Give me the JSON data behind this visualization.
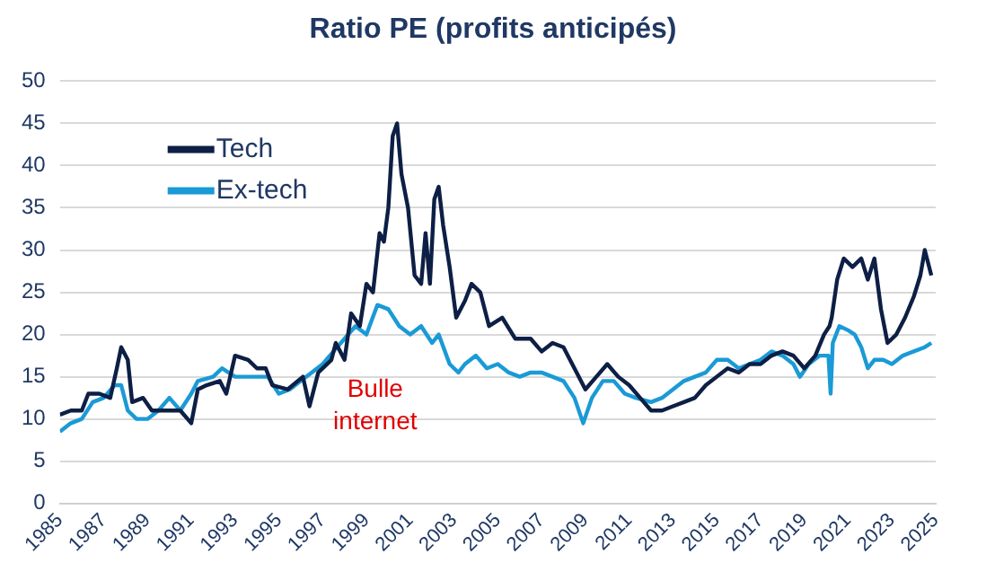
{
  "chart_data": {
    "type": "line",
    "title": "Ratio PE (profits anticipés)",
    "xlim": [
      1985,
      2025
    ],
    "xticks": [
      1985,
      1987,
      1989,
      1991,
      1993,
      1995,
      1997,
      1999,
      2001,
      2003,
      2005,
      2007,
      2009,
      2011,
      2013,
      2015,
      2017,
      2019,
      2021,
      2023,
      2025
    ],
    "ylim": [
      0,
      50
    ],
    "yticks": [
      0,
      5,
      10,
      15,
      20,
      25,
      30,
      35,
      40,
      45,
      50
    ],
    "grid": "y",
    "legend": "top left",
    "marker": "none",
    "line_style": "solid",
    "annotations": [
      "Bulle internet"
    ],
    "series": [
      {
        "name": "Tech",
        "color": "#0d1f45",
        "x": [
          1985,
          1985.5,
          1986,
          1986.3,
          1986.8,
          1987.3,
          1987.6,
          1987.8,
          1988.1,
          1988.3,
          1988.8,
          1989.2,
          1989.6,
          1990,
          1990.5,
          1991,
          1991.3,
          1991.7,
          1992.3,
          1992.6,
          1993,
          1993.6,
          1994,
          1994.4,
          1994.7,
          1995.4,
          1996.1,
          1996.4,
          1996.8,
          1997.4,
          1997.6,
          1998,
          1998.3,
          1998.7,
          1999,
          1999.3,
          1999.6,
          1999.8,
          2000,
          2000.2,
          2000.4,
          2000.6,
          2000.9,
          2001.2,
          2001.5,
          2001.7,
          2001.9,
          2002.1,
          2002.3,
          2002.5,
          2002.8,
          2003.1,
          2003.5,
          2003.8,
          2004.2,
          2004.6,
          2005.2,
          2005.8,
          2006.5,
          2007,
          2007.5,
          2008,
          2008.5,
          2009,
          2009.5,
          2010,
          2010.5,
          2011,
          2011.5,
          2012,
          2012.5,
          2013,
          2013.5,
          2014,
          2014.5,
          2015,
          2015.5,
          2016,
          2016.5,
          2017,
          2017.5,
          2018,
          2018.5,
          2019,
          2019.5,
          2019.9,
          2020.15,
          2020.25,
          2020.5,
          2020.8,
          2021.2,
          2021.6,
          2021.9,
          2022.2,
          2022.5,
          2022.8,
          2023.2,
          2023.6,
          2024,
          2024.3,
          2024.5,
          2024.8
        ],
        "values": [
          10.5,
          11,
          11,
          13,
          13,
          12.5,
          16,
          18.5,
          17,
          12,
          12.5,
          11,
          11,
          11,
          11,
          9.5,
          13.5,
          14,
          14.5,
          13,
          17.5,
          17,
          16,
          16,
          14,
          13.5,
          15,
          11.5,
          15.5,
          17,
          19,
          17,
          22.5,
          21,
          26,
          25,
          32,
          31,
          35,
          43.5,
          45,
          39,
          35,
          27,
          26,
          32,
          26,
          36,
          37.5,
          33,
          28,
          22,
          24,
          26,
          25,
          21,
          22,
          19.5,
          19.5,
          18,
          19,
          18.5,
          16,
          13.5,
          15,
          16.5,
          15,
          14,
          12.5,
          11,
          11,
          11.5,
          12,
          12.5,
          14,
          15,
          16,
          15.5,
          16.5,
          16.5,
          17.5,
          18,
          17.5,
          16,
          17.5,
          20,
          21,
          22,
          26.5,
          29,
          28,
          29,
          26.5,
          29,
          23,
          19,
          20,
          22,
          24.5,
          27,
          30,
          27
        ]
      },
      {
        "name": "Ex-tech",
        "color": "#1a9ad6",
        "x": [
          1985,
          1985.5,
          1986,
          1986.5,
          1987,
          1987.5,
          1987.8,
          1988.1,
          1988.5,
          1989,
          1989.5,
          1990,
          1990.5,
          1991,
          1991.3,
          1992,
          1992.4,
          1993,
          1994,
          1994.5,
          1995,
          1995.5,
          1996,
          1996.5,
          1997,
          1997.5,
          1998,
          1998.5,
          1999,
          1999.5,
          2000,
          2000.5,
          2001,
          2001.5,
          2002,
          2002.3,
          2002.8,
          2003.2,
          2003.5,
          2004,
          2004.5,
          2005,
          2005.5,
          2006,
          2006.5,
          2007,
          2007.5,
          2008,
          2008.5,
          2008.9,
          2009.3,
          2009.8,
          2010.3,
          2010.8,
          2011.3,
          2012,
          2012.5,
          2013,
          2013.5,
          2014,
          2014.5,
          2015,
          2015.5,
          2016,
          2016.5,
          2017,
          2017.5,
          2018,
          2018.5,
          2018.8,
          2019.2,
          2019.7,
          2020.1,
          2020.2,
          2020.3,
          2020.6,
          2021,
          2021.3,
          2021.6,
          2021.9,
          2022.2,
          2022.6,
          2023,
          2023.5,
          2024,
          2024.5,
          2024.8
        ],
        "values": [
          8.5,
          9.5,
          10,
          12,
          12.5,
          14,
          14,
          11,
          10,
          10,
          11,
          12.5,
          11,
          13,
          14.5,
          15,
          16,
          15,
          15,
          15,
          13,
          13.5,
          14.5,
          15.5,
          16.5,
          18,
          19.5,
          21,
          20,
          23.5,
          23,
          21,
          20,
          21,
          19,
          20,
          16.5,
          15.5,
          16.5,
          17.5,
          16,
          16.5,
          15.5,
          15,
          15.5,
          15.5,
          15,
          14.5,
          12.5,
          9.5,
          12.5,
          14.5,
          14.5,
          13,
          12.5,
          12,
          12.5,
          13.5,
          14.5,
          15,
          15.5,
          17,
          17,
          16,
          16.5,
          17,
          18,
          17.5,
          16.5,
          15,
          16.5,
          17.5,
          17.5,
          13,
          19,
          21,
          20.5,
          20,
          18.5,
          16,
          17,
          17,
          16.5,
          17.5,
          18,
          18.5,
          19
        ]
      }
    ]
  }
}
